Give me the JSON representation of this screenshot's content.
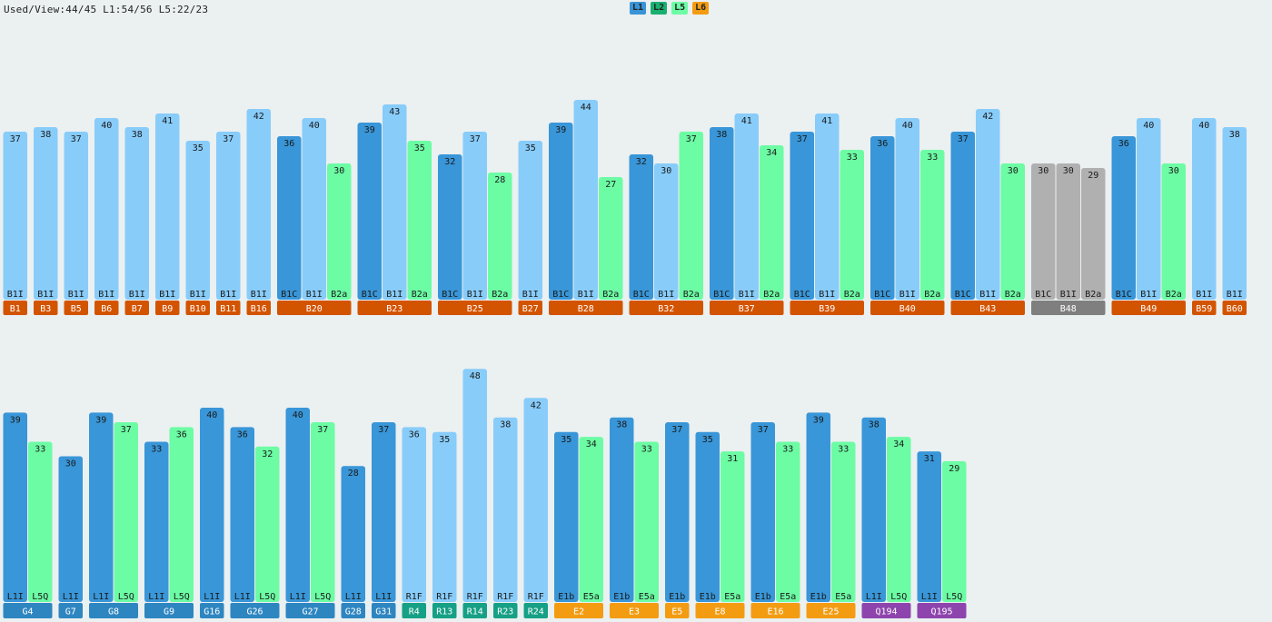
{
  "status_text": "Used/View:44/45 L1:54/56 L5:22/23",
  "legend": [
    {
      "label": "L1",
      "color": "#3894d6"
    },
    {
      "label": "L2",
      "color": "#18b070"
    },
    {
      "label": "L5",
      "color": "#6cfca4"
    },
    {
      "label": "L6",
      "color": "#f39c12"
    }
  ],
  "colors": {
    "bar_dark_blue": "#3996d8",
    "bar_light_blue": "#88ccfa",
    "bar_green": "#6cfca4",
    "bar_gray": "#b0b0b0",
    "group_orange_dark": "#d35400",
    "group_gray": "#7f7f7f",
    "group_blue": "#2e86c1",
    "group_teal": "#16a085",
    "group_orange": "#f39c12",
    "group_purple": "#8e44ad"
  },
  "chart_data": [
    {
      "type": "bar",
      "ylim": [
        0,
        48
      ],
      "groups": [
        {
          "label": "B1",
          "color": "group_orange_dark",
          "bars": [
            {
              "label": "B1I",
              "value": 37,
              "color": "bar_light_blue"
            }
          ]
        },
        {
          "label": "B3",
          "color": "group_orange_dark",
          "bars": [
            {
              "label": "B1I",
              "value": 38,
              "color": "bar_light_blue"
            }
          ]
        },
        {
          "label": "B5",
          "color": "group_orange_dark",
          "bars": [
            {
              "label": "B1I",
              "value": 37,
              "color": "bar_light_blue"
            }
          ]
        },
        {
          "label": "B6",
          "color": "group_orange_dark",
          "bars": [
            {
              "label": "B1I",
              "value": 40,
              "color": "bar_light_blue"
            }
          ]
        },
        {
          "label": "B7",
          "color": "group_orange_dark",
          "bars": [
            {
              "label": "B1I",
              "value": 38,
              "color": "bar_light_blue"
            }
          ]
        },
        {
          "label": "B9",
          "color": "group_orange_dark",
          "bars": [
            {
              "label": "B1I",
              "value": 41,
              "color": "bar_light_blue"
            }
          ]
        },
        {
          "label": "B10",
          "color": "group_orange_dark",
          "bars": [
            {
              "label": "B1I",
              "value": 35,
              "color": "bar_light_blue"
            }
          ]
        },
        {
          "label": "B11",
          "color": "group_orange_dark",
          "bars": [
            {
              "label": "B1I",
              "value": 37,
              "color": "bar_light_blue"
            }
          ]
        },
        {
          "label": "B16",
          "color": "group_orange_dark",
          "bars": [
            {
              "label": "B1I",
              "value": 42,
              "color": "bar_light_blue"
            }
          ]
        },
        {
          "label": "B20",
          "color": "group_orange_dark",
          "bars": [
            {
              "label": "B1C",
              "value": 36,
              "color": "bar_dark_blue"
            },
            {
              "label": "B1I",
              "value": 40,
              "color": "bar_light_blue"
            },
            {
              "label": "B2a",
              "value": 30,
              "color": "bar_green"
            }
          ]
        },
        {
          "label": "B23",
          "color": "group_orange_dark",
          "bars": [
            {
              "label": "B1C",
              "value": 39,
              "color": "bar_dark_blue"
            },
            {
              "label": "B1I",
              "value": 43,
              "color": "bar_light_blue"
            },
            {
              "label": "B2a",
              "value": 35,
              "color": "bar_green"
            }
          ]
        },
        {
          "label": "B25",
          "color": "group_orange_dark",
          "bars": [
            {
              "label": "B1C",
              "value": 32,
              "color": "bar_dark_blue"
            },
            {
              "label": "B1I",
              "value": 37,
              "color": "bar_light_blue"
            },
            {
              "label": "B2a",
              "value": 28,
              "color": "bar_green"
            }
          ]
        },
        {
          "label": "B27",
          "color": "group_orange_dark",
          "bars": [
            {
              "label": "B1I",
              "value": 35,
              "color": "bar_light_blue"
            }
          ]
        },
        {
          "label": "B28",
          "color": "group_orange_dark",
          "bars": [
            {
              "label": "B1C",
              "value": 39,
              "color": "bar_dark_blue"
            },
            {
              "label": "B1I",
              "value": 44,
              "color": "bar_light_blue"
            },
            {
              "label": "B2a",
              "value": 27,
              "color": "bar_green"
            }
          ]
        },
        {
          "label": "B32",
          "color": "group_orange_dark",
          "bars": [
            {
              "label": "B1C",
              "value": 32,
              "color": "bar_dark_blue"
            },
            {
              "label": "B1I",
              "value": 30,
              "color": "bar_light_blue"
            },
            {
              "label": "B2a",
              "value": 37,
              "color": "bar_green"
            }
          ]
        },
        {
          "label": "B37",
          "color": "group_orange_dark",
          "bars": [
            {
              "label": "B1C",
              "value": 38,
              "color": "bar_dark_blue"
            },
            {
              "label": "B1I",
              "value": 41,
              "color": "bar_light_blue"
            },
            {
              "label": "B2a",
              "value": 34,
              "color": "bar_green"
            }
          ]
        },
        {
          "label": "B39",
          "color": "group_orange_dark",
          "bars": [
            {
              "label": "B1C",
              "value": 37,
              "color": "bar_dark_blue"
            },
            {
              "label": "B1I",
              "value": 41,
              "color": "bar_light_blue"
            },
            {
              "label": "B2a",
              "value": 33,
              "color": "bar_green"
            }
          ]
        },
        {
          "label": "B40",
          "color": "group_orange_dark",
          "bars": [
            {
              "label": "B1C",
              "value": 36,
              "color": "bar_dark_blue"
            },
            {
              "label": "B1I",
              "value": 40,
              "color": "bar_light_blue"
            },
            {
              "label": "B2a",
              "value": 33,
              "color": "bar_green"
            }
          ]
        },
        {
          "label": "B43",
          "color": "group_orange_dark",
          "bars": [
            {
              "label": "B1C",
              "value": 37,
              "color": "bar_dark_blue"
            },
            {
              "label": "B1I",
              "value": 42,
              "color": "bar_light_blue"
            },
            {
              "label": "B2a",
              "value": 30,
              "color": "bar_green"
            }
          ]
        },
        {
          "label": "B48",
          "color": "group_gray",
          "bars": [
            {
              "label": "B1C",
              "value": 30,
              "color": "bar_gray"
            },
            {
              "label": "B1I",
              "value": 30,
              "color": "bar_gray"
            },
            {
              "label": "B2a",
              "value": 29,
              "color": "bar_gray"
            }
          ]
        },
        {
          "label": "B49",
          "color": "group_orange_dark",
          "bars": [
            {
              "label": "B1C",
              "value": 36,
              "color": "bar_dark_blue"
            },
            {
              "label": "B1I",
              "value": 40,
              "color": "bar_light_blue"
            },
            {
              "label": "B2a",
              "value": 30,
              "color": "bar_green"
            }
          ]
        },
        {
          "label": "B59",
          "color": "group_orange_dark",
          "bars": [
            {
              "label": "B1I",
              "value": 40,
              "color": "bar_light_blue"
            }
          ]
        },
        {
          "label": "B60",
          "color": "group_orange_dark",
          "bars": [
            {
              "label": "B1I",
              "value": 38,
              "color": "bar_light_blue"
            }
          ]
        }
      ]
    },
    {
      "type": "bar",
      "ylim": [
        0,
        48
      ],
      "groups": [
        {
          "label": "G4",
          "color": "group_blue",
          "bars": [
            {
              "label": "L1I",
              "value": 39,
              "color": "bar_dark_blue"
            },
            {
              "label": "L5Q",
              "value": 33,
              "color": "bar_green"
            }
          ]
        },
        {
          "label": "G7",
          "color": "group_blue",
          "bars": [
            {
              "label": "L1I",
              "value": 30,
              "color": "bar_dark_blue"
            }
          ]
        },
        {
          "label": "G8",
          "color": "group_blue",
          "bars": [
            {
              "label": "L1I",
              "value": 39,
              "color": "bar_dark_blue"
            },
            {
              "label": "L5Q",
              "value": 37,
              "color": "bar_green"
            }
          ]
        },
        {
          "label": "G9",
          "color": "group_blue",
          "bars": [
            {
              "label": "L1I",
              "value": 33,
              "color": "bar_dark_blue"
            },
            {
              "label": "L5Q",
              "value": 36,
              "color": "bar_green"
            }
          ]
        },
        {
          "label": "G16",
          "color": "group_blue",
          "bars": [
            {
              "label": "L1I",
              "value": 40,
              "color": "bar_dark_blue"
            }
          ]
        },
        {
          "label": "G26",
          "color": "group_blue",
          "bars": [
            {
              "label": "L1I",
              "value": 36,
              "color": "bar_dark_blue"
            },
            {
              "label": "L5Q",
              "value": 32,
              "color": "bar_green"
            }
          ]
        },
        {
          "label": "G27",
          "color": "group_blue",
          "bars": [
            {
              "label": "L1I",
              "value": 40,
              "color": "bar_dark_blue"
            },
            {
              "label": "L5Q",
              "value": 37,
              "color": "bar_green"
            }
          ]
        },
        {
          "label": "G28",
          "color": "group_blue",
          "bars": [
            {
              "label": "L1I",
              "value": 28,
              "color": "bar_dark_blue"
            }
          ]
        },
        {
          "label": "G31",
          "color": "group_blue",
          "bars": [
            {
              "label": "L1I",
              "value": 37,
              "color": "bar_dark_blue"
            }
          ]
        },
        {
          "label": "R4",
          "color": "group_teal",
          "bars": [
            {
              "label": "R1F",
              "value": 36,
              "color": "bar_light_blue"
            }
          ]
        },
        {
          "label": "R13",
          "color": "group_teal",
          "bars": [
            {
              "label": "R1F",
              "value": 35,
              "color": "bar_light_blue"
            }
          ]
        },
        {
          "label": "R14",
          "color": "group_teal",
          "bars": [
            {
              "label": "R1F",
              "value": 48,
              "color": "bar_light_blue"
            }
          ]
        },
        {
          "label": "R23",
          "color": "group_teal",
          "bars": [
            {
              "label": "R1F",
              "value": 38,
              "color": "bar_light_blue"
            }
          ]
        },
        {
          "label": "R24",
          "color": "group_teal",
          "bars": [
            {
              "label": "R1F",
              "value": 42,
              "color": "bar_light_blue"
            }
          ]
        },
        {
          "label": "E2",
          "color": "group_orange",
          "bars": [
            {
              "label": "E1b",
              "value": 35,
              "color": "bar_dark_blue"
            },
            {
              "label": "E5a",
              "value": 34,
              "color": "bar_green"
            }
          ]
        },
        {
          "label": "E3",
          "color": "group_orange",
          "bars": [
            {
              "label": "E1b",
              "value": 38,
              "color": "bar_dark_blue"
            },
            {
              "label": "E5a",
              "value": 33,
              "color": "bar_green"
            }
          ]
        },
        {
          "label": "E5",
          "color": "group_orange",
          "bars": [
            {
              "label": "E1b",
              "value": 37,
              "color": "bar_dark_blue"
            }
          ]
        },
        {
          "label": "E8",
          "color": "group_orange",
          "bars": [
            {
              "label": "E1b",
              "value": 35,
              "color": "bar_dark_blue"
            },
            {
              "label": "E5a",
              "value": 31,
              "color": "bar_green"
            }
          ]
        },
        {
          "label": "E16",
          "color": "group_orange",
          "bars": [
            {
              "label": "E1b",
              "value": 37,
              "color": "bar_dark_blue"
            },
            {
              "label": "E5a",
              "value": 33,
              "color": "bar_green"
            }
          ]
        },
        {
          "label": "E25",
          "color": "group_orange",
          "bars": [
            {
              "label": "E1b",
              "value": 39,
              "color": "bar_dark_blue"
            },
            {
              "label": "E5a",
              "value": 33,
              "color": "bar_green"
            }
          ]
        },
        {
          "label": "Q194",
          "color": "group_purple",
          "bars": [
            {
              "label": "L1I",
              "value": 38,
              "color": "bar_dark_blue"
            },
            {
              "label": "L5Q",
              "value": 34,
              "color": "bar_green"
            }
          ]
        },
        {
          "label": "Q195",
          "color": "group_purple",
          "bars": [
            {
              "label": "L1I",
              "value": 31,
              "color": "bar_dark_blue"
            },
            {
              "label": "L5Q",
              "value": 29,
              "color": "bar_green"
            }
          ]
        }
      ]
    }
  ]
}
